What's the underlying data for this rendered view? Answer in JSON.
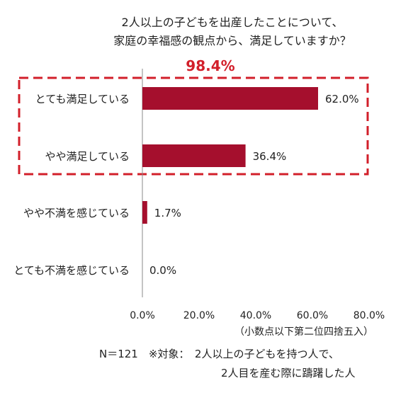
{
  "chart_data": {
    "type": "bar",
    "orientation": "horizontal",
    "title_lines": [
      "2人以上の子どもを出産したことについて、",
      "家庭の幸福感の観点から、満足していますか？"
    ],
    "categories": [
      "とても満足している",
      "やや満足している",
      "やや不満を感じている",
      "とても不満を感じている"
    ],
    "values": [
      62.0,
      36.4,
      1.7,
      0.0
    ],
    "value_labels": [
      "62.0%",
      "36.4%",
      "1.7%",
      "0.0%"
    ],
    "xlim": [
      0,
      80
    ],
    "x_ticks": [
      0,
      20,
      40,
      60,
      80
    ],
    "x_tick_labels": [
      "0.0%",
      "20.0%",
      "40.0%",
      "60.0%",
      "80.0%"
    ],
    "grid": false,
    "bar_color": "#a50f2d",
    "highlight": {
      "label": "98.4%",
      "color": "#d21f2a",
      "categories_covered": [
        "とても満足している",
        "やや満足している"
      ]
    },
    "note": "（小数点以下第二位四捨五入）",
    "footnote_lines": [
      "N＝121　※対象：　2人以上の子どもを持つ人で、",
      "2人目を産む際に躊躇した人"
    ]
  }
}
